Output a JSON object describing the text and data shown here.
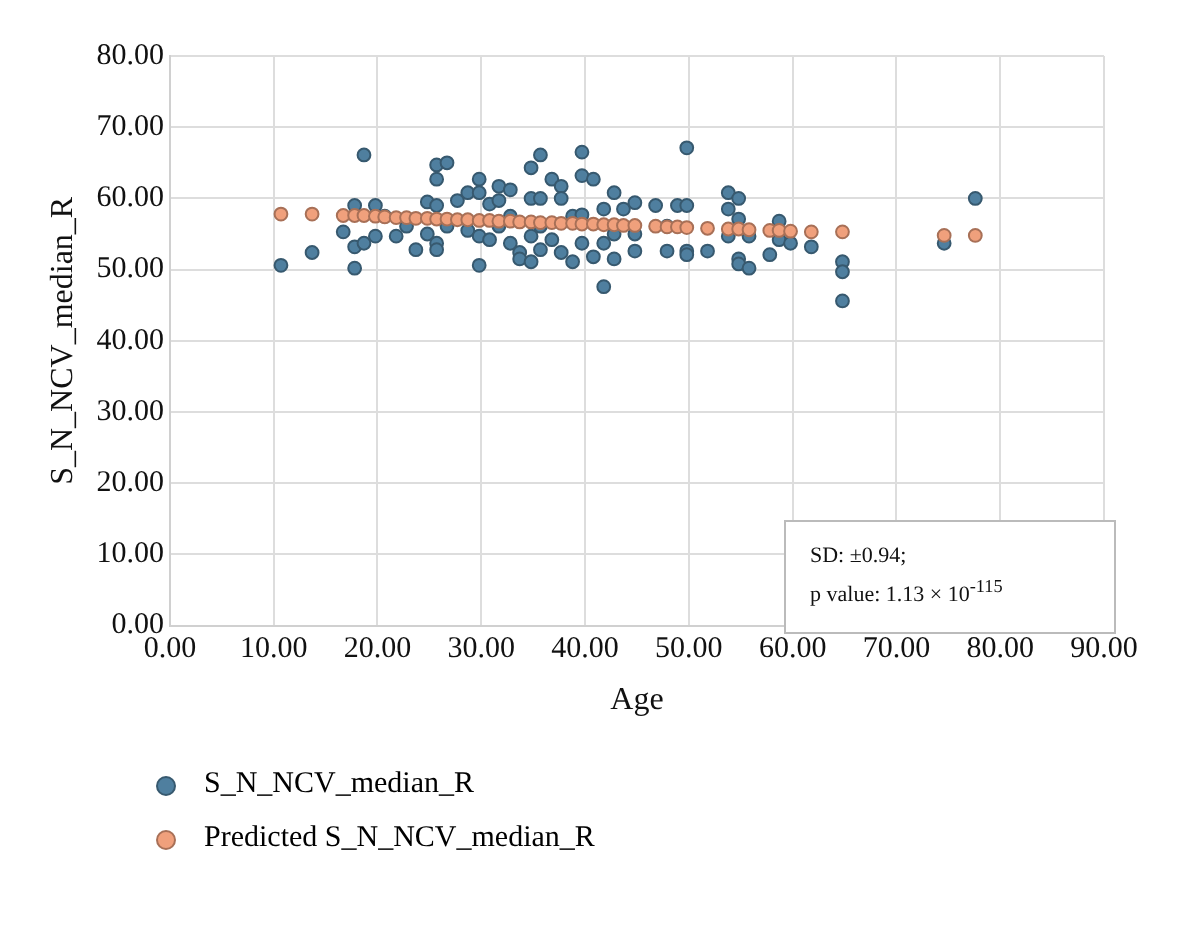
{
  "chart_data": {
    "type": "scatter",
    "xlabel": "Age",
    "ylabel": "S_N_NCV_median_R",
    "xlim": [
      0,
      90
    ],
    "ylim": [
      0,
      80
    ],
    "xticks": [
      {
        "value": 0,
        "label": "0.00"
      },
      {
        "value": 10,
        "label": "10.00"
      },
      {
        "value": 20,
        "label": "20.00"
      },
      {
        "value": 30,
        "label": "30.00"
      },
      {
        "value": 40,
        "label": "40.00"
      },
      {
        "value": 50,
        "label": "50.00"
      },
      {
        "value": 60,
        "label": "60.00"
      },
      {
        "value": 70,
        "label": "70.00"
      },
      {
        "value": 80,
        "label": "80.00"
      },
      {
        "value": 90,
        "label": "90.00"
      }
    ],
    "yticks": [
      {
        "value": 0,
        "label": "0.00"
      },
      {
        "value": 10,
        "label": "10.00"
      },
      {
        "value": 20,
        "label": "20.00"
      },
      {
        "value": 30,
        "label": "30.00"
      },
      {
        "value": 40,
        "label": "40.00"
      },
      {
        "value": 50,
        "label": "50.00"
      },
      {
        "value": 60,
        "label": "60.00"
      },
      {
        "value": 70,
        "label": "70.00"
      },
      {
        "value": 80,
        "label": "80.00"
      }
    ],
    "grid": true,
    "legend": "bottom",
    "marker": "circle",
    "annotations": [
      "SD: ±0.94;",
      "p value: 1.13 × 10$^{-115}$"
    ],
    "series": [
      {
        "name": "S_N_NCV_median_R",
        "color": "#4f7f9f",
        "x": [
          10.7,
          13.7,
          16.7,
          17.8,
          17.8,
          17.8,
          18.7,
          18.7,
          19.8,
          19.8,
          20.7,
          21.8,
          22.8,
          23.7,
          24.8,
          24.8,
          25.7,
          25.7,
          25.7,
          25.7,
          25.7,
          26.7,
          26.7,
          27.7,
          28.7,
          28.7,
          29.8,
          29.8,
          29.8,
          29.8,
          30.8,
          30.8,
          31.7,
          31.7,
          31.7,
          32.8,
          32.8,
          32.8,
          33.7,
          33.7,
          34.8,
          34.8,
          34.8,
          34.8,
          35.7,
          35.7,
          35.7,
          35.7,
          36.8,
          36.8,
          37.7,
          37.7,
          37.7,
          38.8,
          38.8,
          39.7,
          39.7,
          39.7,
          39.7,
          40.8,
          40.8,
          41.8,
          41.8,
          41.8,
          42.8,
          42.8,
          42.8,
          43.7,
          44.8,
          44.8,
          44.8,
          46.8,
          47.9,
          47.9,
          48.9,
          49.8,
          49.8,
          49.8,
          49.8,
          51.8,
          53.8,
          53.8,
          53.8,
          54.8,
          54.8,
          54.8,
          54.8,
          55.8,
          55.8,
          57.8,
          58.7,
          58.7,
          59.8,
          61.8,
          64.8,
          64.8,
          64.8,
          74.6,
          77.6
        ],
        "values": [
          50.6,
          52.4,
          55.3,
          59.0,
          53.2,
          50.2,
          66.1,
          53.7,
          59.0,
          54.7,
          57.5,
          54.7,
          56.1,
          52.8,
          59.5,
          55.0,
          64.7,
          62.7,
          59.0,
          53.7,
          52.8,
          65.0,
          56.1,
          59.7,
          60.8,
          55.5,
          62.7,
          60.8,
          54.7,
          50.6,
          59.2,
          54.2,
          61.7,
          59.7,
          56.1,
          61.2,
          57.5,
          53.7,
          52.4,
          51.5,
          64.3,
          60.0,
          54.7,
          51.1,
          66.1,
          60.0,
          56.1,
          52.8,
          62.7,
          54.2,
          61.7,
          60.0,
          52.4,
          57.5,
          51.1,
          66.5,
          63.2,
          57.7,
          53.7,
          62.7,
          51.8,
          47.6,
          58.5,
          53.7,
          60.8,
          51.5,
          55.0,
          58.5,
          59.4,
          55.0,
          52.6,
          59.0,
          56.1,
          52.6,
          59.0,
          67.1,
          59.0,
          52.6,
          52.1,
          52.6,
          60.8,
          58.5,
          54.7,
          60.0,
          57.1,
          51.5,
          50.8,
          50.2,
          54.7,
          52.1,
          56.8,
          54.2,
          53.7,
          53.2,
          51.1,
          49.7,
          45.6,
          53.7,
          60.0
        ]
      },
      {
        "name": "Predicted S_N_NCV_median_R",
        "color": "#f0a07c",
        "x": [
          10.7,
          13.7,
          16.7,
          17.8,
          18.7,
          19.8,
          20.7,
          21.8,
          22.8,
          23.7,
          24.8,
          25.7,
          26.7,
          27.7,
          28.7,
          29.8,
          30.8,
          31.7,
          32.8,
          33.7,
          34.8,
          35.7,
          36.8,
          37.7,
          38.8,
          39.7,
          40.8,
          41.8,
          42.8,
          43.7,
          44.8,
          46.8,
          47.9,
          48.9,
          49.8,
          51.8,
          53.8,
          54.8,
          55.8,
          57.8,
          58.7,
          59.8,
          61.8,
          64.8,
          74.6,
          77.6
        ],
        "values": [
          57.8,
          57.8,
          57.6,
          57.6,
          57.6,
          57.5,
          57.4,
          57.3,
          57.3,
          57.2,
          57.2,
          57.1,
          57.1,
          57.0,
          57.0,
          56.9,
          56.9,
          56.8,
          56.8,
          56.7,
          56.7,
          56.6,
          56.6,
          56.5,
          56.5,
          56.4,
          56.4,
          56.3,
          56.3,
          56.2,
          56.2,
          56.1,
          56.0,
          56.0,
          55.9,
          55.8,
          55.7,
          55.7,
          55.6,
          55.5,
          55.5,
          55.4,
          55.3,
          55.3,
          54.8,
          54.8
        ]
      }
    ]
  }
}
